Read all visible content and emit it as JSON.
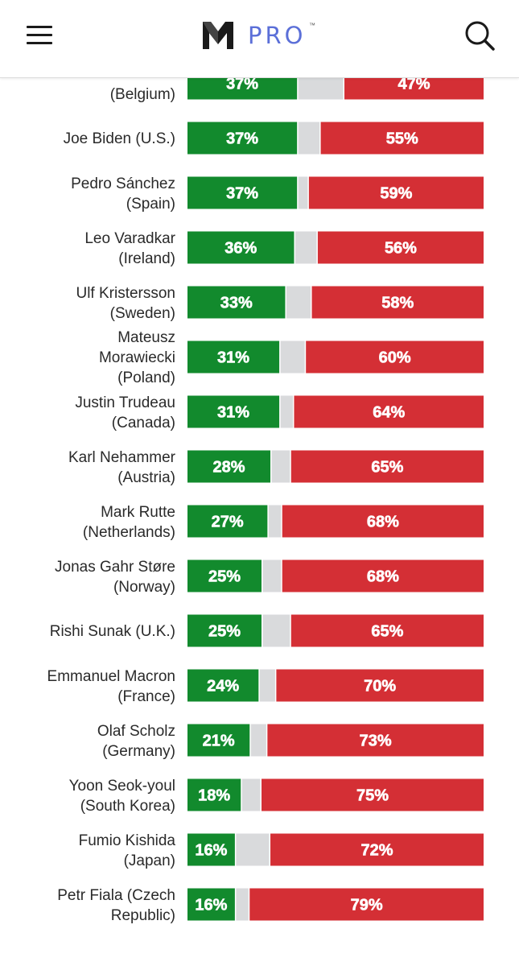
{
  "header": {
    "logo_text": "PRO",
    "logo_tm": "™",
    "menu_icon": "hamburger-menu-icon",
    "search_icon": "search-icon"
  },
  "colors": {
    "approve": "#128a2d",
    "neutral": "#d9dadc",
    "disapprove": "#d42f35",
    "bar_text": "#ffffff",
    "label_text": "#2a2a2a"
  },
  "chart_data": {
    "type": "bar",
    "orientation": "horizontal",
    "stacked": true,
    "rows": [
      {
        "leader": [
          "",
          "(Belgium)"
        ],
        "approve": 37,
        "disapprove": 47
      },
      {
        "leader": [
          "Joe Biden (U.S.)"
        ],
        "approve": 37,
        "disapprove": 55
      },
      {
        "leader": [
          "Pedro Sánchez",
          "(Spain)"
        ],
        "approve": 37,
        "disapprove": 59
      },
      {
        "leader": [
          "Leo Varadkar",
          "(Ireland)"
        ],
        "approve": 36,
        "disapprove": 56
      },
      {
        "leader": [
          "Ulf Kristersson",
          "(Sweden)"
        ],
        "approve": 33,
        "disapprove": 58
      },
      {
        "leader": [
          "Mateusz",
          "Morawiecki",
          "(Poland)"
        ],
        "approve": 31,
        "disapprove": 60
      },
      {
        "leader": [
          "Justin Trudeau",
          "(Canada)"
        ],
        "approve": 31,
        "disapprove": 64
      },
      {
        "leader": [
          "Karl Nehammer",
          "(Austria)"
        ],
        "approve": 28,
        "disapprove": 65
      },
      {
        "leader": [
          "Mark Rutte",
          "(Netherlands)"
        ],
        "approve": 27,
        "disapprove": 68
      },
      {
        "leader": [
          "Jonas Gahr Støre",
          "(Norway)"
        ],
        "approve": 25,
        "disapprove": 68
      },
      {
        "leader": [
          "Rishi Sunak (U.K.)"
        ],
        "approve": 25,
        "disapprove": 65
      },
      {
        "leader": [
          "Emmanuel Macron",
          "(France)"
        ],
        "approve": 24,
        "disapprove": 70
      },
      {
        "leader": [
          "Olaf Scholz",
          "(Germany)"
        ],
        "approve": 21,
        "disapprove": 73
      },
      {
        "leader": [
          "Yoon Seok-youl",
          "(South Korea)"
        ],
        "approve": 18,
        "disapprove": 75
      },
      {
        "leader": [
          "Fumio Kishida",
          "(Japan)"
        ],
        "approve": 16,
        "disapprove": 72
      },
      {
        "leader": [
          "Petr Fiala (Czech",
          "Republic)"
        ],
        "approve": 16,
        "disapprove": 79
      }
    ],
    "value_suffix": "%",
    "xlim": [
      0,
      100
    ]
  }
}
